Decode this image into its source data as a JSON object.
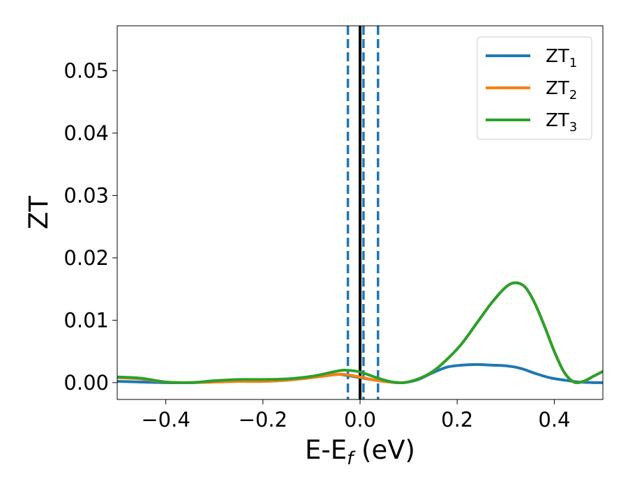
{
  "chart_data": {
    "type": "line",
    "title": "",
    "xlabel": "E-E",
    "xlabel_sub": "f",
    "xlabel_unit": " (eV)",
    "ylabel": "ZT",
    "xlim": [
      -0.5,
      0.5
    ],
    "ylim": [
      -0.0027,
      0.0572
    ],
    "xticks": [
      -0.4,
      -0.2,
      0.0,
      0.2,
      0.4
    ],
    "xtick_labels": [
      "−0.4",
      "−0.2",
      "0.0",
      "0.2",
      "0.4"
    ],
    "yticks": [
      0.0,
      0.01,
      0.02,
      0.03,
      0.04,
      0.05
    ],
    "ytick_labels": [
      "0.00",
      "0.01",
      "0.02",
      "0.03",
      "0.04",
      "0.05"
    ],
    "grid": false,
    "legend_position": "top-right",
    "vlines": [
      {
        "x": 0.0,
        "style": "solid",
        "color": "#000000"
      },
      {
        "x": -0.025,
        "style": "dashed",
        "color": "#1f77b4"
      },
      {
        "x": 0.007,
        "style": "dashed",
        "color": "#1f77b4"
      },
      {
        "x": 0.037,
        "style": "dashed",
        "color": "#1f77b4"
      }
    ],
    "series": [
      {
        "name": "ZT",
        "sub": "1",
        "color": "#1f77b4",
        "x": [
          -0.5,
          -0.45,
          -0.4,
          -0.35,
          -0.3,
          -0.25,
          -0.2,
          -0.15,
          -0.1,
          -0.05,
          -0.03,
          0.0,
          0.03,
          0.06,
          0.09,
          0.12,
          0.15,
          0.18,
          0.21,
          0.24,
          0.27,
          0.3,
          0.33,
          0.36,
          0.39,
          0.42,
          0.45,
          0.48,
          0.5
        ],
        "y": [
          0.0002,
          0.0001,
          0.0,
          0.0,
          0.0001,
          0.0002,
          0.0002,
          0.0004,
          0.0008,
          0.0013,
          0.0012,
          0.0008,
          0.0004,
          0.0001,
          0.0,
          0.0005,
          0.0016,
          0.0025,
          0.0028,
          0.0029,
          0.0028,
          0.0027,
          0.0023,
          0.0015,
          0.0008,
          0.0004,
          0.0001,
          0.0,
          0.0
        ]
      },
      {
        "name": "ZT",
        "sub": "2",
        "color": "#ff7f0e",
        "x": [
          -0.5,
          -0.45,
          -0.4,
          -0.35,
          -0.3,
          -0.25,
          -0.2,
          -0.15,
          -0.1,
          -0.05,
          -0.03,
          0.0,
          0.03,
          0.06,
          0.09,
          0.12,
          0.15,
          0.18,
          0.21,
          0.24,
          0.27,
          0.3,
          0.32,
          0.34,
          0.36,
          0.38,
          0.4,
          0.42,
          0.44,
          0.46,
          0.48,
          0.5
        ],
        "y": [
          0.0008,
          0.0006,
          0.0001,
          0.0,
          0.0001,
          0.0002,
          0.0002,
          0.0004,
          0.0008,
          0.0013,
          0.0013,
          0.0009,
          0.0004,
          0.0001,
          0.0,
          0.0006,
          0.0018,
          0.0038,
          0.0063,
          0.0095,
          0.0127,
          0.0153,
          0.016,
          0.0153,
          0.0127,
          0.009,
          0.005,
          0.0017,
          0.0001,
          0.0002,
          0.001,
          0.0018
        ]
      },
      {
        "name": "ZT",
        "sub": "3",
        "color": "#2ca02c",
        "x": [
          -0.5,
          -0.45,
          -0.4,
          -0.35,
          -0.3,
          -0.25,
          -0.2,
          -0.15,
          -0.1,
          -0.05,
          -0.03,
          0.0,
          0.03,
          0.06,
          0.09,
          0.12,
          0.15,
          0.18,
          0.21,
          0.24,
          0.27,
          0.3,
          0.32,
          0.34,
          0.36,
          0.38,
          0.4,
          0.42,
          0.44,
          0.46,
          0.48,
          0.5
        ],
        "y": [
          0.0009,
          0.0007,
          0.0001,
          0.0,
          0.0003,
          0.0005,
          0.0005,
          0.0006,
          0.001,
          0.0018,
          0.002,
          0.0017,
          0.0009,
          0.0002,
          0.0,
          0.0006,
          0.0018,
          0.0038,
          0.0063,
          0.0095,
          0.0127,
          0.0153,
          0.016,
          0.0153,
          0.0127,
          0.009,
          0.005,
          0.0017,
          0.0001,
          0.0002,
          0.001,
          0.0018
        ]
      }
    ]
  }
}
